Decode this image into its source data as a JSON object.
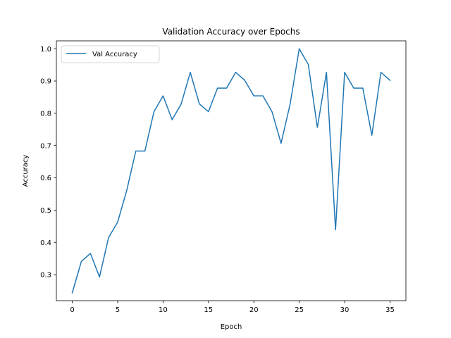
{
  "chart_data": {
    "type": "line",
    "title": "Validation Accuracy over Epochs",
    "xlabel": "Epoch",
    "ylabel": "Accuracy",
    "xlim": [
      -1.75,
      36.75
    ],
    "ylim": [
      0.2195,
      1.0244
    ],
    "xticks": [
      0,
      5,
      10,
      15,
      20,
      25,
      30,
      35
    ],
    "yticks": [
      0.3,
      0.4,
      0.5,
      0.6,
      0.7,
      0.8,
      0.9,
      1.0
    ],
    "ytick_labels": [
      "0.3",
      "0.4",
      "0.5",
      "0.6",
      "0.7",
      "0.8",
      "0.9",
      "1.0"
    ],
    "grid": false,
    "legend_position": "top-left",
    "series": [
      {
        "name": "Val Accuracy",
        "color": "#1f77b4",
        "x": [
          0,
          1,
          2,
          3,
          4,
          5,
          6,
          7,
          8,
          9,
          10,
          11,
          12,
          13,
          14,
          15,
          16,
          17,
          18,
          19,
          20,
          21,
          22,
          23,
          24,
          25,
          26,
          27,
          28,
          29,
          30,
          31,
          32,
          33,
          34,
          35
        ],
        "y": [
          0.244,
          0.341,
          0.366,
          0.293,
          0.415,
          0.463,
          0.561,
          0.683,
          0.683,
          0.805,
          0.854,
          0.78,
          0.829,
          0.927,
          0.829,
          0.805,
          0.878,
          0.878,
          0.927,
          0.902,
          0.854,
          0.854,
          0.805,
          0.707,
          0.829,
          1.0,
          0.951,
          0.756,
          0.927,
          0.439,
          0.927,
          0.878,
          0.878,
          0.732,
          0.927,
          0.902
        ]
      }
    ]
  }
}
